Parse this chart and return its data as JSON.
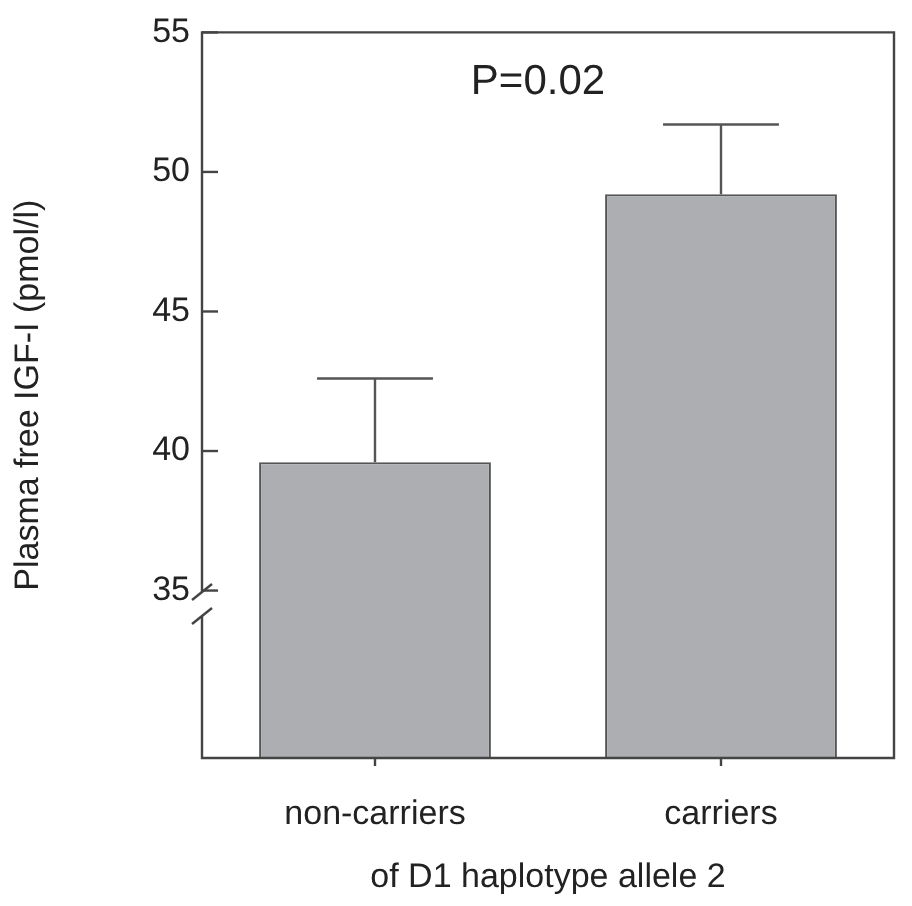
{
  "chart_data": {
    "type": "bar",
    "ylabel": "Plasma free IGF-I (pmol/l)",
    "xlabel": "of D1 haplotype allele 2",
    "categories": [
      "non-carriers",
      "carriers"
    ],
    "values": [
      39.6,
      49.2
    ],
    "errors": [
      [
        39.6,
        42.6
      ],
      [
        49.2,
        51.7
      ]
    ],
    "color": "#adaeb2",
    "ylim": [
      29,
      55
    ],
    "yticks": [
      35,
      40,
      45,
      50,
      55
    ],
    "grid": false,
    "annotations": [
      "P=0.02"
    ]
  }
}
